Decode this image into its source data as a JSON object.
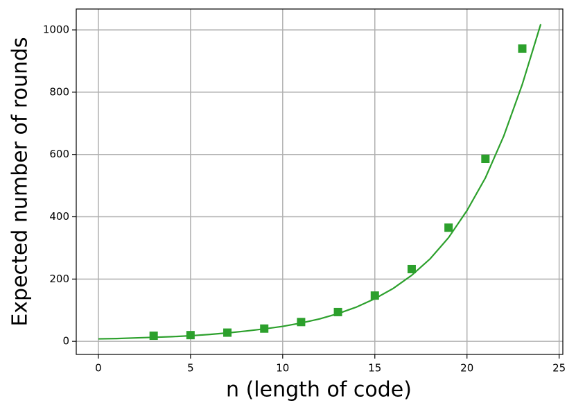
{
  "chart_data": {
    "type": "scatter",
    "xlabel": "n (length of code)",
    "ylabel": "Expected number of rounds",
    "x": [
      3,
      5,
      7,
      9,
      11,
      13,
      15,
      17,
      19,
      21,
      23
    ],
    "values": [
      18,
      20,
      28,
      41,
      62,
      94,
      147,
      232,
      365,
      586,
      940
    ],
    "color": "#2ca02c",
    "marker": "square",
    "fit": {
      "x": [
        0,
        1,
        2,
        3,
        4,
        5,
        6,
        7,
        8,
        9,
        10,
        11,
        12,
        13,
        14,
        15,
        16,
        17,
        18,
        19,
        20,
        21,
        22,
        23,
        24
      ],
      "values": [
        8,
        9,
        11,
        13,
        15,
        18,
        22,
        27,
        33,
        40,
        48,
        59,
        72,
        89,
        110,
        137,
        170,
        212,
        265,
        333,
        420,
        525,
        660,
        825,
        1018
      ],
      "color": "#2ca02c"
    },
    "xlim": [
      -1.2,
      25.2
    ],
    "xticks": [
      0,
      5,
      10,
      15,
      20,
      25
    ],
    "ylim": [
      -42,
      1067
    ],
    "yticks": [
      0,
      200,
      400,
      600,
      800,
      1000
    ],
    "grid": true
  }
}
